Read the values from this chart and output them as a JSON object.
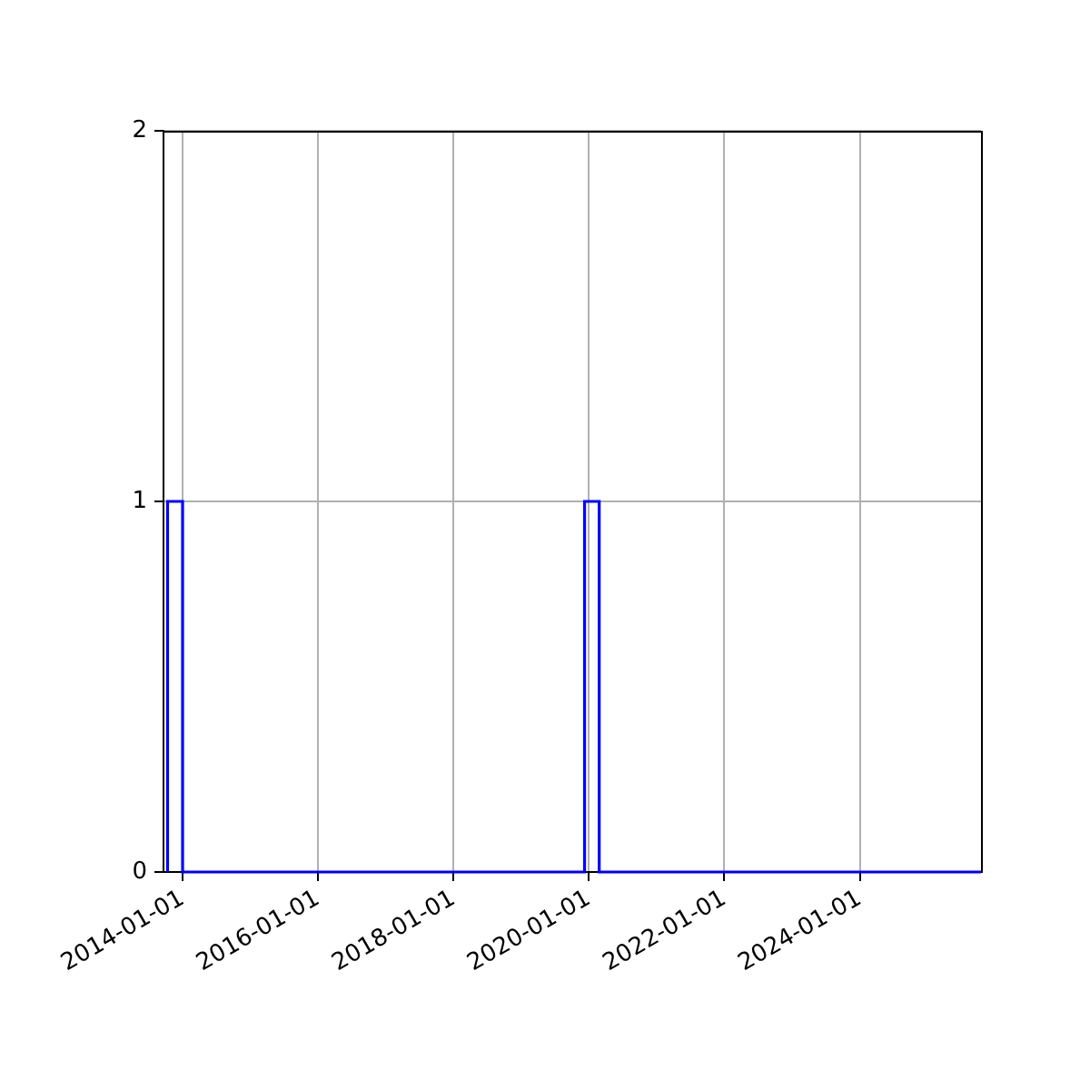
{
  "chart_data": {
    "type": "histogram",
    "bins": [
      "2013-10-12",
      "2014-01-01",
      "2019-12-09",
      "2020-02-26",
      "2025-10-16"
    ],
    "values": [
      1,
      0,
      1,
      0
    ],
    "color": "#0000ff",
    "xlim": [
      "2013-09-20",
      "2025-10-16"
    ],
    "xticks": [
      "2014-01-01",
      "2016-01-01",
      "2018-01-01",
      "2020-01-01",
      "2022-01-01",
      "2024-01-01"
    ],
    "ylim": [
      0,
      2
    ],
    "yticks": [
      0,
      1,
      2
    ],
    "grid": true
  }
}
